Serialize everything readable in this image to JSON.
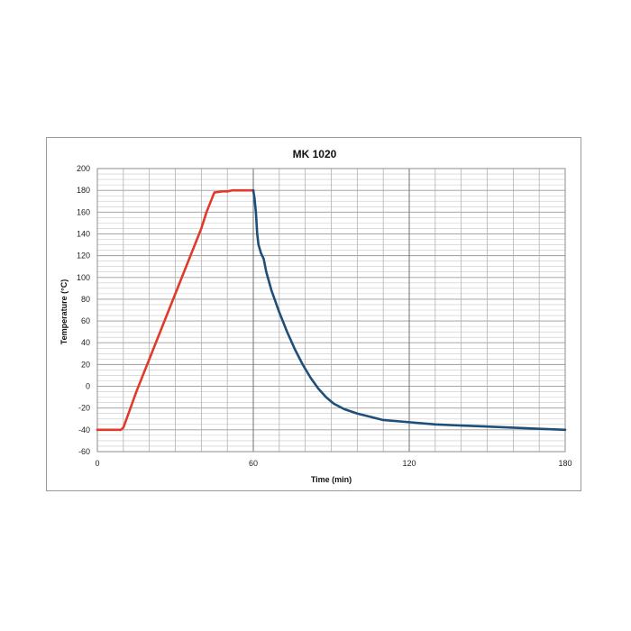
{
  "chart_data": {
    "type": "line",
    "title": "MK 1020",
    "xlabel": "Time (min)",
    "ylabel": "Temperature (°C)",
    "xlim": [
      0,
      180
    ],
    "ylim": [
      -60,
      200
    ],
    "x_ticks": [
      0,
      60,
      120,
      180
    ],
    "y_ticks": [
      -60,
      -40,
      -20,
      0,
      20,
      40,
      60,
      80,
      100,
      120,
      140,
      160,
      180,
      200
    ],
    "grid": true,
    "series": [
      {
        "color": "#e03a2b",
        "points": [
          [
            0,
            -40
          ],
          [
            9,
            -40
          ],
          [
            10,
            -38
          ],
          [
            12,
            -25
          ],
          [
            15,
            -5
          ],
          [
            20,
            25
          ],
          [
            25,
            55
          ],
          [
            30,
            85
          ],
          [
            35,
            115
          ],
          [
            40,
            145
          ],
          [
            42,
            160
          ],
          [
            44,
            172
          ],
          [
            45,
            178
          ],
          [
            48,
            179
          ],
          [
            50,
            179
          ],
          [
            52,
            180
          ],
          [
            60,
            180
          ]
        ]
      },
      {
        "color": "#1f4e79",
        "points": [
          [
            60,
            180
          ],
          [
            60.5,
            172
          ],
          [
            61,
            160
          ],
          [
            61.5,
            140
          ],
          [
            62,
            130
          ],
          [
            63,
            122
          ],
          [
            64,
            117
          ],
          [
            65,
            105
          ],
          [
            67,
            88
          ],
          [
            70,
            68
          ],
          [
            73,
            50
          ],
          [
            76,
            34
          ],
          [
            79,
            20
          ],
          [
            82,
            8
          ],
          [
            85,
            -2
          ],
          [
            88,
            -10
          ],
          [
            91,
            -16
          ],
          [
            95,
            -21
          ],
          [
            100,
            -25
          ],
          [
            105,
            -28
          ],
          [
            110,
            -31
          ],
          [
            120,
            -33
          ],
          [
            130,
            -35
          ],
          [
            140,
            -36
          ],
          [
            150,
            -37
          ],
          [
            160,
            -38
          ],
          [
            170,
            -39
          ],
          [
            180,
            -40
          ]
        ]
      }
    ]
  }
}
